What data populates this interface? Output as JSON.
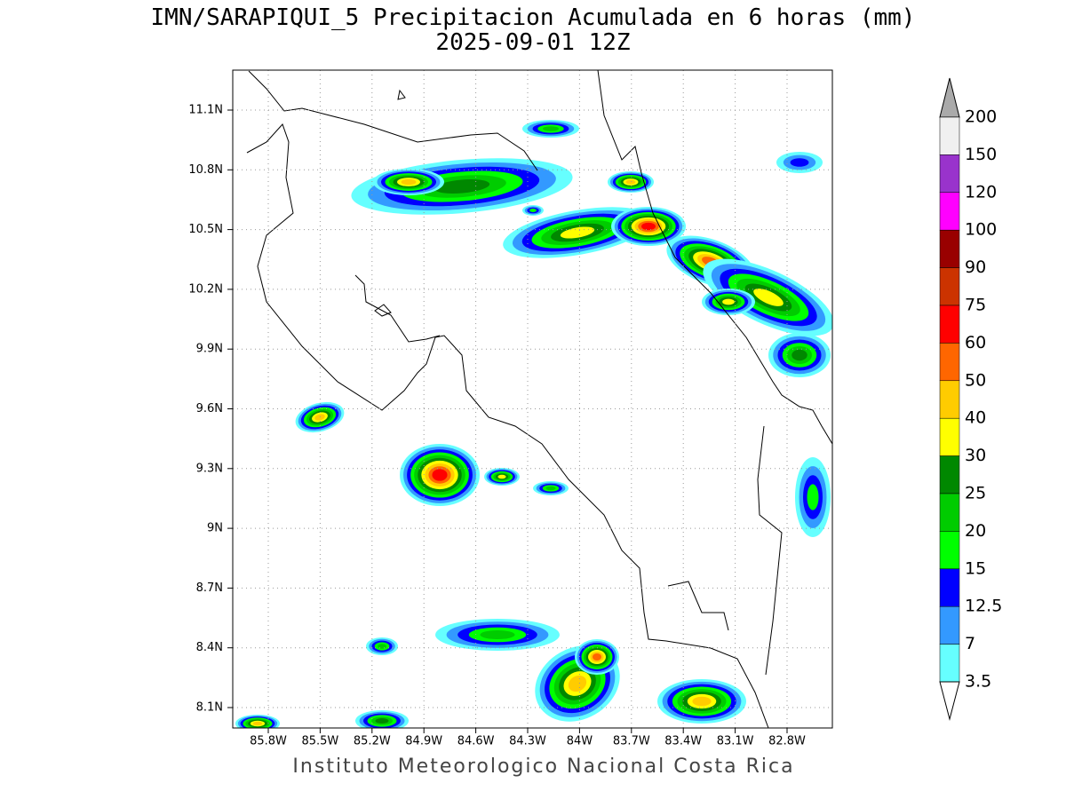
{
  "title": "IMN/SARAPIQUI_5 Precipitacion Acumulada en 6 horas (mm)",
  "subtitle": "2025-09-01 12Z",
  "map": {
    "lon_labels": [
      "85.8W",
      "85.5W",
      "85.2W",
      "84.9W",
      "84.6W",
      "84.3W",
      "84W",
      "83.7W",
      "83.4W",
      "83.1W",
      "82.8W"
    ],
    "lat_labels": [
      "11.1N",
      "10.8N",
      "10.5N",
      "10.2N",
      "9.9N",
      "9.6N",
      "9.3N",
      "9N",
      "8.7N",
      "8.4N",
      "8.1N"
    ]
  },
  "colorbar": {
    "labels": [
      200,
      150,
      120,
      100,
      90,
      75,
      60,
      50,
      40,
      30,
      25,
      20,
      15,
      12.5,
      7,
      3.5
    ],
    "colors": [
      "#f0f0f0",
      "#9933cc",
      "#ff00ff",
      "#990000",
      "#cc3300",
      "#ff0000",
      "#ff6600",
      "#ffcc00",
      "#ffff00",
      "#008800",
      "#00cc00",
      "#00ff00",
      "#0000ff",
      "#3399ff",
      "#66ffff"
    ],
    "above_color": "#aaaaaa",
    "below_color": "#ffffff"
  },
  "footer": "Instituto Meteorologico Nacional Costa Rica"
}
